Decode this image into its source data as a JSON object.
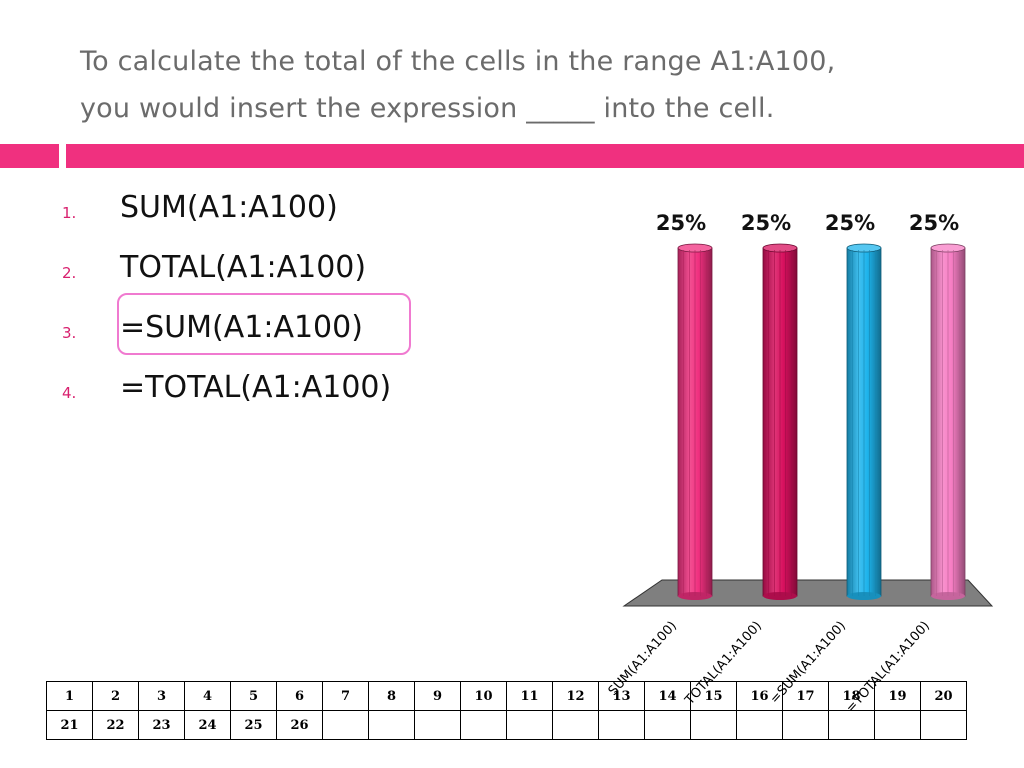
{
  "title": {
    "line1": "To calculate the total of the cells in the range A1:A100,",
    "line2": "you would insert the expression _____ into the cell."
  },
  "options": [
    {
      "number": "1.",
      "text": "SUM(A1:A100)"
    },
    {
      "number": "2.",
      "text": "TOTAL(A1:A100)"
    },
    {
      "number": "3.",
      "text": "=SUM(A1:A100)"
    },
    {
      "number": "4.",
      "text": "=TOTAL(A1:A100)"
    }
  ],
  "highlighted_option": 3,
  "colors": {
    "accent": "#f0307f",
    "title_text": "#6b6b6b",
    "number_text": "#d8206e",
    "highlight_border": "#f07ad0",
    "chart_floor": "#7f7f7f"
  },
  "chart_data": {
    "type": "bar",
    "categories": [
      "SUM(A1:A100)",
      "TOTAL(A1:A100)",
      "=SUM(A1:A100)",
      "=TOTAL(A1:A100)"
    ],
    "values": [
      25,
      25,
      25,
      25
    ],
    "data_labels": [
      "25%",
      "25%",
      "25%",
      "25%"
    ],
    "colors": [
      "#f0307f",
      "#d8105e",
      "#1eb4ec",
      "#f77ec4"
    ],
    "ylim": [
      0,
      25
    ],
    "grid": false,
    "legend": "none"
  },
  "grid": {
    "rows": [
      [
        "1",
        "2",
        "3",
        "4",
        "5",
        "6",
        "7",
        "8",
        "9",
        "10",
        "11",
        "12",
        "13",
        "14",
        "15",
        "16",
        "17",
        "18",
        "19",
        "20"
      ],
      [
        "21",
        "22",
        "23",
        "24",
        "25",
        "26",
        "",
        "",
        "",
        "",
        "",
        "",
        "",
        "",
        "",
        "",
        "",
        "",
        "",
        ""
      ]
    ]
  }
}
